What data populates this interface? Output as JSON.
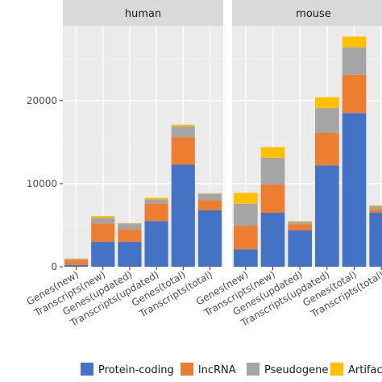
{
  "chart_data": {
    "type": "bar",
    "stacked": true,
    "title": "",
    "xlabel": "",
    "ylabel": "",
    "ylim": [
      0,
      29000
    ],
    "yticks": [
      0,
      10000,
      20000
    ],
    "ytick_labels": [
      "0",
      "10000",
      "20000"
    ],
    "grid": true,
    "legend_position": "bottom",
    "categories": [
      "Genes(new)",
      "Transcripts(new)",
      "Genes(updated)",
      "Transcripts(updated)",
      "Genes(total)",
      "Transcripts(total)"
    ],
    "series_meta": [
      {
        "name": "Protein-coding",
        "color": "#4472C4"
      },
      {
        "name": "lncRNA",
        "color": "#ED7D31"
      },
      {
        "name": "Pseudogene",
        "color": "#A5A5A5"
      },
      {
        "name": "Artifact",
        "color": "#FFC000"
      }
    ],
    "panels": [
      {
        "name": "human",
        "series": [
          {
            "name": "Protein-coding",
            "values": [
              200,
              3000,
              3000,
              5500,
              12300,
              6800
            ]
          },
          {
            "name": "lncRNA",
            "values": [
              600,
              2200,
              1500,
              2100,
              3300,
              1200
            ]
          },
          {
            "name": "Pseudogene",
            "values": [
              150,
              700,
              700,
              500,
              1300,
              800
            ]
          },
          {
            "name": "Artifact",
            "values": [
              50,
              200,
              50,
              200,
              200,
              50
            ]
          }
        ]
      },
      {
        "name": "mouse",
        "series": [
          {
            "name": "Protein-coding",
            "values": [
              2100,
              6500,
              4400,
              12200,
              18500,
              6500
            ]
          },
          {
            "name": "lncRNA",
            "values": [
              2800,
              3400,
              700,
              3900,
              4600,
              400
            ]
          },
          {
            "name": "Pseudogene",
            "values": [
              2700,
              3200,
              300,
              3000,
              3300,
              400
            ]
          },
          {
            "name": "Artifact",
            "values": [
              1300,
              1300,
              100,
              1300,
              1300,
              100
            ]
          }
        ]
      }
    ]
  },
  "legend": {
    "items": [
      {
        "label": "Protein-coding",
        "color": "#4472C4"
      },
      {
        "label": "lncRNA",
        "color": "#ED7D31"
      },
      {
        "label": "Pseudogene",
        "color": "#A5A5A5"
      },
      {
        "label": "Artifac",
        "color": "#FFC000"
      }
    ]
  }
}
